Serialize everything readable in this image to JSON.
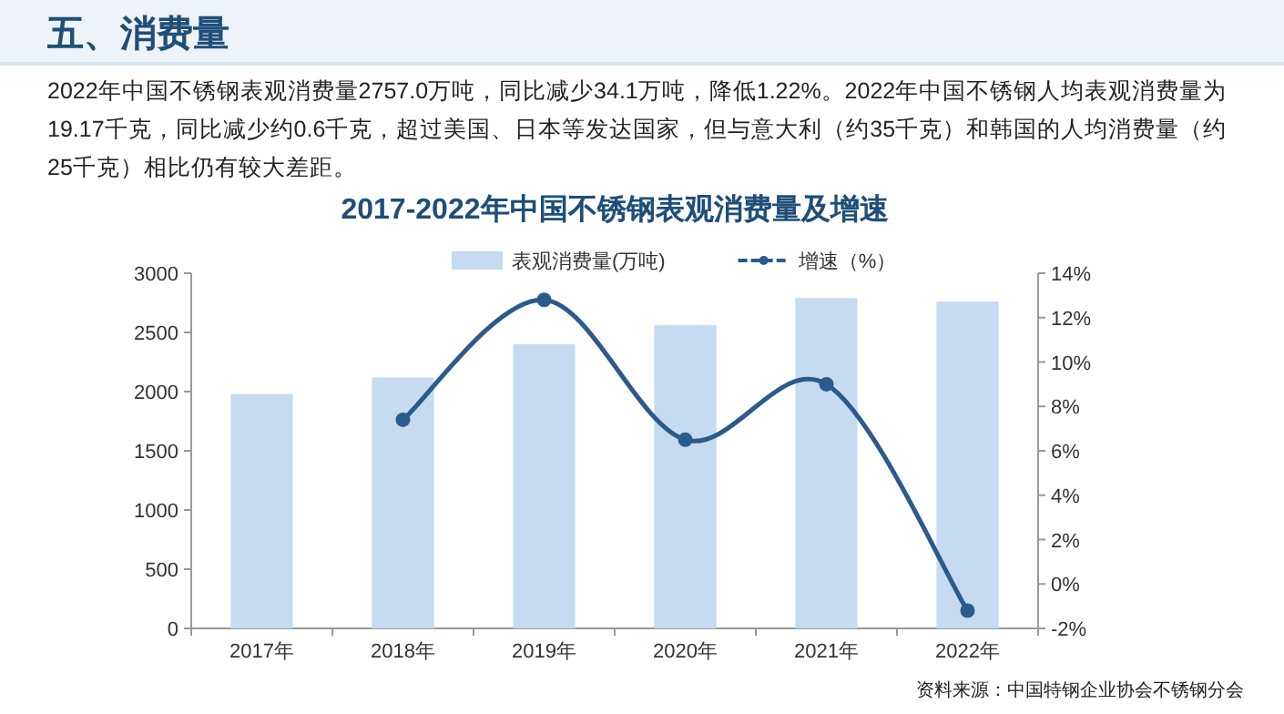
{
  "chart_data": {
    "type": "bar",
    "title": "2017-2022年中国不锈钢表观消费量及增速",
    "annotations": [
      "五、消费量",
      "2022年中国不锈钢表观消费量2757.0万吨，同比减少34.1万吨，降低1.22%。2022年中国不锈钢人均表观消费量为19.17千克，同比减少约0.6千克，超过美国、日本等发达国家，但与意大利（约35千克）和韩国的人均消费量（约25千克）相比仍有较大差距。",
      "资料来源：中国特钢企业协会不锈钢分会"
    ],
    "categories": [
      "2017年",
      "2018年",
      "2019年",
      "2020年",
      "2021年",
      "2022年"
    ],
    "series": [
      {
        "name": "表观消费量(万吨)",
        "color": "#c6daf2",
        "values": [
          1980,
          2120,
          2400,
          2560,
          2790,
          2760
        ]
      },
      {
        "name": "增速（%）",
        "type": "line",
        "axis": "y2",
        "color": "#2b5a8c",
        "marker": "circle",
        "values": [
          null,
          7.4,
          12.8,
          6.5,
          9.0,
          -1.2
        ]
      }
    ],
    "ylim": [
      0,
      3000
    ],
    "yticks": [
      0,
      500,
      1000,
      1500,
      2000,
      2500,
      3000
    ],
    "y2lim": [
      -2,
      14
    ],
    "y2ticks": [
      {
        "value": -2,
        "label": "-2%"
      },
      {
        "value": 0,
        "label": "0%"
      },
      {
        "value": 2,
        "label": "2%"
      },
      {
        "value": 4,
        "label": "4%"
      },
      {
        "value": 6,
        "label": "6%"
      },
      {
        "value": 8,
        "label": "8%"
      },
      {
        "value": 10,
        "label": "10%"
      },
      {
        "value": 12,
        "label": "12%"
      },
      {
        "value": 14,
        "label": "14%"
      }
    ],
    "legend": "top",
    "grid": false
  }
}
